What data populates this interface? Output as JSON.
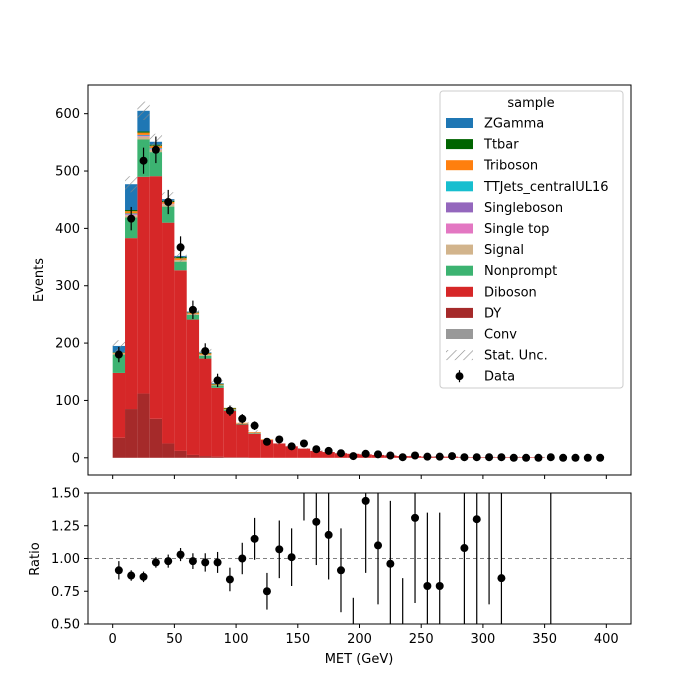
{
  "chart_data": [
    {
      "type": "bar",
      "panel": "main",
      "stacked": true,
      "ylabel": "Events",
      "ylim": [
        -30,
        650
      ],
      "xlim": [
        -20,
        420
      ],
      "yticks": [
        0,
        100,
        200,
        300,
        400,
        500,
        600
      ],
      "bin_width": 10,
      "bin_edges": [
        0,
        10,
        20,
        30,
        40,
        50,
        60,
        70,
        80,
        90,
        100,
        110,
        120,
        130,
        140,
        150,
        160,
        170,
        180,
        190,
        200,
        210,
        220,
        230,
        240,
        250,
        260,
        270,
        280,
        290,
        300,
        310,
        320,
        330,
        340,
        350,
        360,
        370,
        380,
        390,
        400
      ],
      "legend": {
        "title": "sample",
        "position": "upper-right",
        "entries": [
          "ZGamma",
          "Ttbar",
          "Triboson",
          "TTJets_centralUL16",
          "Singleboson",
          "Single top",
          "Signal",
          "Nonprompt",
          "Diboson",
          "DY",
          "Conv",
          "Stat. Unc.",
          "Data"
        ]
      },
      "series": [
        {
          "name": "DY",
          "color": "#a52a2a",
          "values": [
            35,
            85,
            112,
            68,
            25,
            12,
            5,
            3,
            2,
            1,
            1,
            0,
            0,
            0,
            0,
            0,
            0,
            0,
            0,
            0,
            0,
            0,
            0,
            0,
            0,
            0,
            0,
            0,
            0,
            0,
            0,
            0,
            0,
            0,
            0,
            0,
            0,
            0,
            0,
            0
          ]
        },
        {
          "name": "Diboson",
          "color": "#d62728",
          "values": [
            113,
            298,
            378,
            423,
            385,
            315,
            236,
            170,
            120,
            81,
            57,
            42,
            31,
            25,
            20,
            16,
            12,
            10,
            8,
            7,
            6,
            5,
            4,
            3,
            3,
            2,
            2,
            2,
            1,
            1,
            1,
            1,
            1,
            1,
            1,
            0,
            0,
            0,
            0,
            0
          ]
        },
        {
          "name": "Nonprompt",
          "color": "#3cb371",
          "values": [
            32,
            36,
            65,
            42,
            28,
            15,
            8,
            5,
            4,
            2,
            1,
            1,
            0,
            0,
            0,
            0,
            0,
            0,
            0,
            0,
            0,
            0,
            0,
            0,
            0,
            0,
            0,
            0,
            0,
            0,
            0,
            0,
            0,
            0,
            0,
            0,
            0,
            0,
            0,
            0
          ]
        },
        {
          "name": "Signal",
          "color": "#d2b48c",
          "values": [
            2,
            4,
            5,
            4,
            4,
            3,
            2,
            2,
            1,
            1,
            1,
            1,
            0,
            0,
            0,
            0,
            0,
            0,
            0,
            0,
            0,
            0,
            0,
            0,
            0,
            0,
            0,
            0,
            0,
            0,
            0,
            0,
            0,
            0,
            0,
            0,
            0,
            0,
            0,
            0
          ]
        },
        {
          "name": "Single top",
          "color": "#e377c2",
          "values": [
            0,
            1,
            1,
            1,
            1,
            0,
            0,
            0,
            0,
            0,
            0,
            0,
            0,
            0,
            0,
            0,
            0,
            0,
            0,
            0,
            0,
            0,
            0,
            0,
            0,
            0,
            0,
            0,
            0,
            0,
            0,
            0,
            0,
            0,
            0,
            0,
            0,
            0,
            0,
            0
          ]
        },
        {
          "name": "Singleboson",
          "color": "#9467bd",
          "values": [
            0,
            1,
            1,
            1,
            0,
            0,
            0,
            0,
            0,
            0,
            0,
            0,
            0,
            0,
            0,
            0,
            0,
            0,
            0,
            0,
            0,
            0,
            0,
            0,
            0,
            0,
            0,
            0,
            0,
            0,
            0,
            0,
            0,
            0,
            0,
            0,
            0,
            0,
            0,
            0
          ]
        },
        {
          "name": "TTJets_centralUL16",
          "color": "#17becf",
          "values": [
            0,
            1,
            1,
            1,
            0,
            0,
            0,
            0,
            0,
            0,
            0,
            0,
            0,
            0,
            0,
            0,
            0,
            0,
            0,
            0,
            0,
            0,
            0,
            0,
            0,
            0,
            0,
            0,
            0,
            0,
            0,
            0,
            0,
            0,
            0,
            0,
            0,
            0,
            0,
            0
          ]
        },
        {
          "name": "Triboson",
          "color": "#ff7f0e",
          "values": [
            1,
            4,
            4,
            4,
            3,
            3,
            2,
            2,
            1,
            1,
            1,
            1,
            1,
            0,
            0,
            0,
            0,
            0,
            0,
            0,
            0,
            0,
            0,
            0,
            0,
            0,
            0,
            0,
            0,
            0,
            0,
            0,
            0,
            0,
            0,
            0,
            0,
            0,
            0,
            0
          ]
        },
        {
          "name": "Ttbar",
          "color": "#006400",
          "values": [
            1,
            2,
            2,
            2,
            2,
            2,
            1,
            1,
            1,
            1,
            0,
            0,
            0,
            0,
            0,
            0,
            0,
            0,
            0,
            0,
            0,
            0,
            0,
            0,
            0,
            0,
            0,
            0,
            0,
            0,
            0,
            0,
            0,
            0,
            0,
            0,
            0,
            0,
            0,
            0
          ]
        },
        {
          "name": "ZGamma",
          "color": "#1f77b4",
          "values": [
            11,
            45,
            36,
            5,
            3,
            2,
            1,
            1,
            1,
            0,
            0,
            0,
            0,
            0,
            0,
            0,
            0,
            0,
            0,
            0,
            0,
            0,
            0,
            0,
            0,
            0,
            0,
            0,
            0,
            0,
            0,
            0,
            0,
            0,
            0,
            0,
            0,
            0,
            0,
            0
          ]
        }
      ],
      "stat_unc": [
        10,
        14,
        16,
        14,
        12,
        10,
        8,
        6,
        5,
        4,
        3,
        3,
        2,
        2,
        2,
        1,
        1,
        1,
        1,
        1,
        1,
        1,
        1,
        1,
        1,
        1,
        1,
        1,
        1,
        1,
        1,
        1,
        1,
        1,
        1,
        0,
        0,
        0,
        0,
        0
      ],
      "data": {
        "name": "Data",
        "x": [
          5,
          15,
          25,
          35,
          45,
          55,
          65,
          75,
          85,
          95,
          105,
          115,
          125,
          135,
          145,
          155,
          165,
          175,
          185,
          195,
          205,
          215,
          225,
          235,
          245,
          255,
          265,
          275,
          285,
          295,
          305,
          315,
          325,
          335,
          345,
          355,
          365,
          375,
          385,
          395
        ],
        "y": [
          180,
          417,
          518,
          537,
          446,
          367,
          258,
          186,
          135,
          82,
          68,
          56,
          28,
          32,
          20,
          25,
          15,
          12,
          8,
          3,
          7,
          6,
          4,
          1,
          4,
          2,
          2,
          3,
          1,
          1,
          1,
          1,
          0,
          0,
          0,
          1,
          0,
          0,
          0,
          0
        ]
      }
    },
    {
      "type": "scatter",
      "panel": "ratio",
      "xlabel": "MET (GeV)",
      "ylabel": "Ratio",
      "ylim": [
        0.5,
        1.5
      ],
      "xlim": [
        -20,
        420
      ],
      "yticks": [
        0.5,
        0.75,
        1.0,
        1.25,
        1.5
      ],
      "ytick_labels": [
        "0.50",
        "0.75",
        "1.00",
        "1.25",
        "1.50"
      ],
      "xticks": [
        0,
        50,
        100,
        150,
        200,
        250,
        300,
        350,
        400
      ],
      "reference_line": 1.0,
      "points": [
        {
          "x": 5,
          "y": 0.91,
          "err": 0.07
        },
        {
          "x": 15,
          "y": 0.87,
          "err": 0.04
        },
        {
          "x": 25,
          "y": 0.86,
          "err": 0.04
        },
        {
          "x": 35,
          "y": 0.97,
          "err": 0.04
        },
        {
          "x": 45,
          "y": 0.98,
          "err": 0.05
        },
        {
          "x": 55,
          "y": 1.03,
          "err": 0.05
        },
        {
          "x": 65,
          "y": 0.98,
          "err": 0.06
        },
        {
          "x": 75,
          "y": 0.97,
          "err": 0.07
        },
        {
          "x": 85,
          "y": 0.97,
          "err": 0.08
        },
        {
          "x": 95,
          "y": 0.84,
          "err": 0.09
        },
        {
          "x": 105,
          "y": 1.0,
          "err": 0.12
        },
        {
          "x": 115,
          "y": 1.15,
          "err": 0.16
        },
        {
          "x": 125,
          "y": 0.75,
          "err": 0.14
        },
        {
          "x": 135,
          "y": 1.07,
          "err": 0.22
        },
        {
          "x": 145,
          "y": 1.01,
          "err": 0.22
        },
        {
          "x": 155,
          "y": null,
          "err": null,
          "bar": [
            1.29,
            1.5
          ]
        },
        {
          "x": 165,
          "y": 1.28,
          "err": 0.33
        },
        {
          "x": 175,
          "y": 1.18,
          "err": 0.34
        },
        {
          "x": 185,
          "y": 0.91,
          "err": 0.32
        },
        {
          "x": 195,
          "y": null,
          "err": null,
          "bar": [
            0.5,
            0.7
          ]
        },
        {
          "x": 205,
          "y": 1.44,
          "err": 0.55
        },
        {
          "x": 215,
          "y": 1.1,
          "err": 0.45
        },
        {
          "x": 225,
          "y": 0.96,
          "err": 0.48
        },
        {
          "x": 235,
          "y": null,
          "err": null,
          "bar": [
            0.5,
            0.85
          ]
        },
        {
          "x": 245,
          "y": 1.31,
          "err": 0.65
        },
        {
          "x": 255,
          "y": 0.79,
          "err": 0.56
        },
        {
          "x": 265,
          "y": 0.79,
          "err": 0.56
        },
        {
          "x": 285,
          "y": 1.08,
          "err": 0.76
        },
        {
          "x": 295,
          "y": 1.3,
          "err": 0.92
        },
        {
          "x": 305,
          "y": null,
          "err": null,
          "bar": [
            0.65,
            1.5
          ]
        },
        {
          "x": 315,
          "y": 0.85,
          "err": 0.85
        },
        {
          "x": 355,
          "y": null,
          "err": null,
          "bar": [
            0.5,
            1.5
          ]
        }
      ]
    }
  ]
}
